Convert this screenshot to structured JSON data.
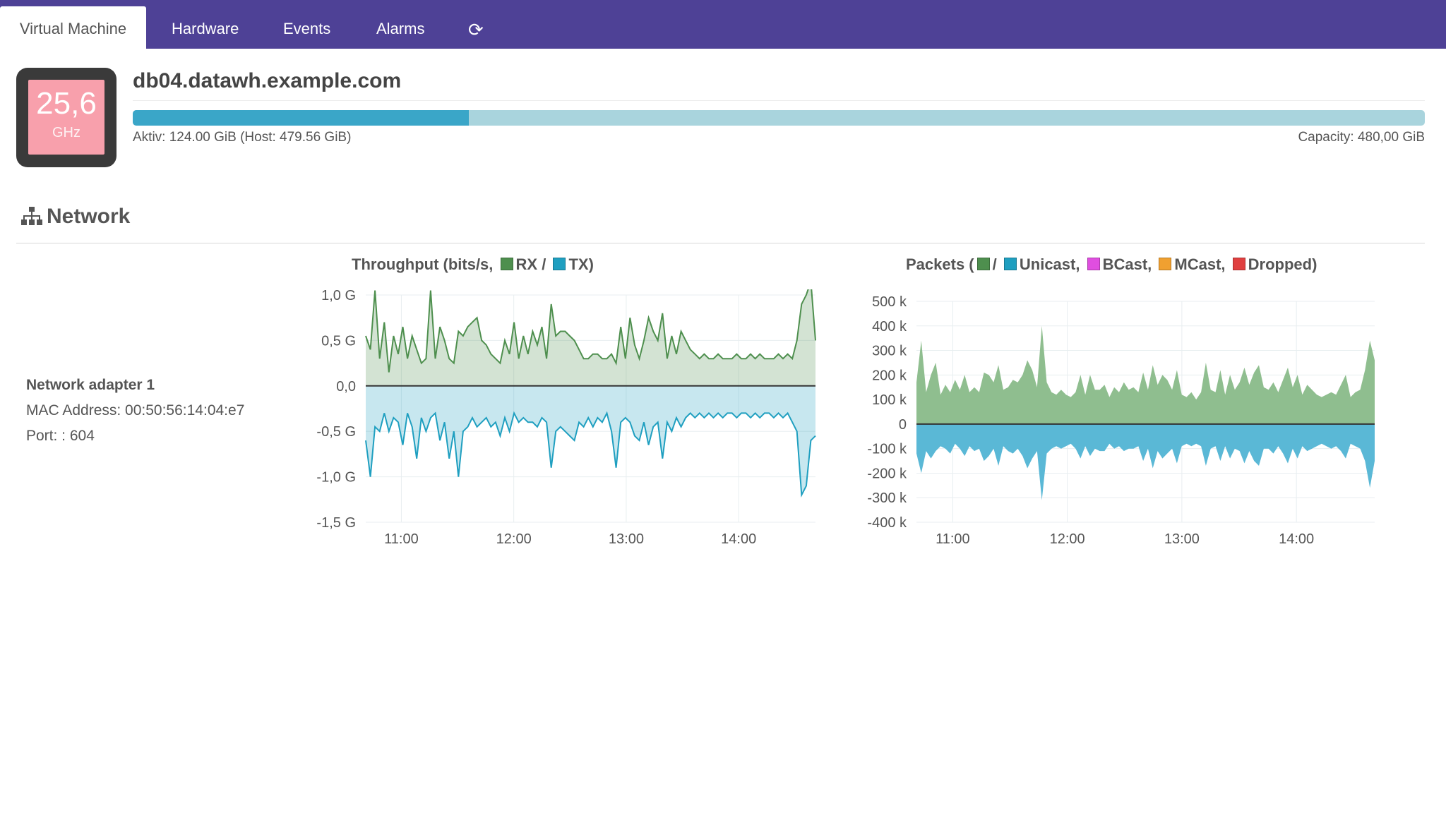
{
  "nav": {
    "tabs": [
      {
        "label": "Virtual Machine",
        "active": true
      },
      {
        "label": "Hardware"
      },
      {
        "label": "Events"
      },
      {
        "label": "Alarms"
      }
    ],
    "refresh_icon": "refresh-icon"
  },
  "cpu": {
    "value": "25,6",
    "unit": "GHz"
  },
  "host": {
    "name": "db04.datawh.example.com",
    "memory_active": "Aktiv: 124.00 GiB (Host: 479.56 GiB)",
    "memory_capacity": "Capacity: 480,00 GiB",
    "memory_fraction": 0.26
  },
  "network": {
    "title": "Network",
    "icon": "sitemap-icon",
    "adapter": {
      "name": "Network adapter 1",
      "mac": "MAC Address: 00:50:56:14:04:e7",
      "port": "Port: : 604"
    }
  },
  "colors": {
    "nav": "#4e4196",
    "rx": "#4e8f4e",
    "tx": "#1f9fc0",
    "bcast": "#e04ee0",
    "mcast": "#f0a030",
    "dropped": "#e04040"
  },
  "chart_data": [
    {
      "type": "area",
      "title": {
        "prefix": "Throughput (bits/s,",
        "rx": "RX /",
        "tx": "TX)"
      },
      "x_ticks": [
        "11:00",
        "12:00",
        "13:00",
        "14:00"
      ],
      "y_ticks": [
        "1,0 G",
        "0,5 G",
        "0,0",
        "-0,5 G",
        "-1,0 G",
        "-1,5 G"
      ],
      "ylim": [
        -1.5,
        1.0
      ],
      "x_range": [
        "10:41",
        "14:41"
      ],
      "grid": true,
      "series": [
        {
          "name": "RX",
          "sign": 1,
          "values": [
            0.55,
            0.4,
            1.05,
            0.3,
            0.7,
            0.15,
            0.55,
            0.35,
            0.65,
            0.3,
            0.55,
            0.4,
            0.25,
            0.3,
            1.05,
            0.3,
            0.65,
            0.5,
            0.3,
            0.25,
            0.6,
            0.55,
            0.65,
            0.7,
            0.75,
            0.5,
            0.45,
            0.35,
            0.3,
            0.25,
            0.5,
            0.35,
            0.7,
            0.3,
            0.55,
            0.35,
            0.6,
            0.45,
            0.65,
            0.3,
            0.9,
            0.55,
            0.6,
            0.6,
            0.55,
            0.5,
            0.4,
            0.3,
            0.3,
            0.35,
            0.35,
            0.3,
            0.3,
            0.35,
            0.25,
            0.65,
            0.3,
            0.75,
            0.45,
            0.3,
            0.5,
            0.75,
            0.6,
            0.5,
            0.8,
            0.3,
            0.55,
            0.35,
            0.6,
            0.5,
            0.4,
            0.35,
            0.3,
            0.35,
            0.3,
            0.3,
            0.35,
            0.3,
            0.3,
            0.3,
            0.35,
            0.3,
            0.3,
            0.35,
            0.3,
            0.35,
            0.3,
            0.3,
            0.3,
            0.35,
            0.3,
            0.35,
            0.3,
            0.5,
            0.9,
            1.0,
            1.15,
            0.5
          ]
        },
        {
          "name": "TX",
          "sign": -1,
          "values": [
            -0.6,
            -1.0,
            -0.45,
            -0.5,
            -0.3,
            -0.5,
            -0.35,
            -0.4,
            -0.65,
            -0.3,
            -0.45,
            -0.8,
            -0.35,
            -0.5,
            -0.35,
            -0.3,
            -0.6,
            -0.4,
            -0.8,
            -0.5,
            -1.0,
            -0.5,
            -0.45,
            -0.35,
            -0.45,
            -0.4,
            -0.35,
            -0.45,
            -0.4,
            -0.55,
            -0.35,
            -0.5,
            -0.3,
            -0.4,
            -0.35,
            -0.4,
            -0.4,
            -0.45,
            -0.35,
            -0.4,
            -0.9,
            -0.5,
            -0.45,
            -0.5,
            -0.55,
            -0.6,
            -0.4,
            -0.45,
            -0.35,
            -0.45,
            -0.35,
            -0.4,
            -0.3,
            -0.5,
            -0.9,
            -0.4,
            -0.35,
            -0.4,
            -0.55,
            -0.6,
            -0.4,
            -0.65,
            -0.45,
            -0.4,
            -0.8,
            -0.4,
            -0.5,
            -0.35,
            -0.45,
            -0.35,
            -0.3,
            -0.35,
            -0.3,
            -0.35,
            -0.3,
            -0.35,
            -0.3,
            -0.35,
            -0.3,
            -0.3,
            -0.35,
            -0.3,
            -0.3,
            -0.35,
            -0.3,
            -0.35,
            -0.3,
            -0.3,
            -0.35,
            -0.3,
            -0.35,
            -0.3,
            -0.4,
            -0.5,
            -1.2,
            -1.1,
            -0.6,
            -0.55
          ]
        }
      ]
    },
    {
      "type": "area",
      "title": {
        "prefix": "Packets (",
        "sep": "/",
        "unicast": "Unicast,",
        "bcast": "BCast,",
        "mcast": "MCast,",
        "dropped": "Dropped)"
      },
      "x_ticks": [
        "11:00",
        "12:00",
        "13:00",
        "14:00"
      ],
      "y_ticks": [
        "500 k",
        "400 k",
        "300 k",
        "200 k",
        "100 k",
        "0",
        "-100 k",
        "-200 k",
        "-300 k",
        "-400 k"
      ],
      "ylim": [
        -400,
        500
      ],
      "y_unit": "k",
      "x_range": [
        "10:41",
        "14:41"
      ],
      "grid": true,
      "series": [
        {
          "name": "Unicast RX",
          "sign": 1,
          "values": [
            170,
            340,
            130,
            200,
            250,
            120,
            160,
            130,
            180,
            140,
            200,
            130,
            150,
            130,
            210,
            200,
            170,
            240,
            140,
            150,
            180,
            170,
            200,
            260,
            220,
            150,
            400,
            170,
            130,
            120,
            140,
            120,
            110,
            130,
            200,
            120,
            200,
            140,
            140,
            160,
            110,
            150,
            130,
            170,
            140,
            150,
            130,
            210,
            140,
            240,
            160,
            200,
            180,
            140,
            220,
            120,
            110,
            130,
            100,
            130,
            250,
            140,
            130,
            220,
            120,
            200,
            140,
            170,
            230,
            160,
            210,
            240,
            150,
            140,
            170,
            130,
            180,
            230,
            150,
            200,
            120,
            160,
            140,
            120,
            110,
            120,
            130,
            120,
            160,
            200,
            110,
            130,
            140,
            220,
            340,
            260
          ]
        },
        {
          "name": "Unicast TX",
          "sign": -1,
          "values": [
            -120,
            -200,
            -110,
            -140,
            -110,
            -90,
            -100,
            -120,
            -80,
            -100,
            -130,
            -90,
            -110,
            -100,
            -150,
            -130,
            -100,
            -170,
            -90,
            -110,
            -120,
            -100,
            -130,
            -180,
            -140,
            -110,
            -310,
            -120,
            -100,
            -90,
            -100,
            -90,
            -80,
            -100,
            -140,
            -90,
            -130,
            -100,
            -110,
            -110,
            -80,
            -100,
            -90,
            -110,
            -100,
            -100,
            -90,
            -150,
            -100,
            -180,
            -110,
            -140,
            -120,
            -100,
            -160,
            -90,
            -80,
            -90,
            -80,
            -90,
            -170,
            -100,
            -90,
            -150,
            -90,
            -140,
            -100,
            -110,
            -160,
            -110,
            -150,
            -170,
            -100,
            -100,
            -120,
            -90,
            -120,
            -160,
            -100,
            -140,
            -90,
            -110,
            -100,
            -90,
            -80,
            -90,
            -100,
            -90,
            -110,
            -140,
            -80,
            -90,
            -100,
            -150,
            -260,
            -150
          ]
        }
      ]
    }
  ]
}
